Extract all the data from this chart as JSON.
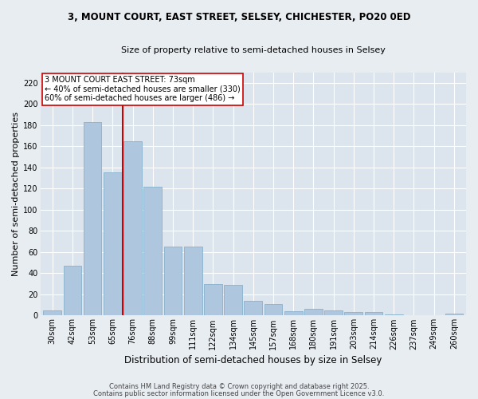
{
  "title": "3, MOUNT COURT, EAST STREET, SELSEY, CHICHESTER, PO20 0ED",
  "subtitle": "Size of property relative to semi-detached houses in Selsey",
  "xlabel": "Distribution of semi-detached houses by size in Selsey",
  "ylabel": "Number of semi-detached properties",
  "categories": [
    "30sqm",
    "42sqm",
    "53sqm",
    "65sqm",
    "76sqm",
    "88sqm",
    "99sqm",
    "111sqm",
    "122sqm",
    "134sqm",
    "145sqm",
    "157sqm",
    "168sqm",
    "180sqm",
    "191sqm",
    "203sqm",
    "214sqm",
    "226sqm",
    "237sqm",
    "249sqm",
    "260sqm"
  ],
  "values": [
    5,
    47,
    183,
    135,
    165,
    122,
    65,
    65,
    30,
    29,
    14,
    11,
    4,
    6,
    5,
    3,
    3,
    1,
    0,
    0,
    2
  ],
  "bar_color": "#aec6de",
  "bar_edgecolor": "#7aaac8",
  "vline_color": "#cc0000",
  "annotation_text": "3 MOUNT COURT EAST STREET: 73sqm\n← 40% of semi-detached houses are smaller (330)\n60% of semi-detached houses are larger (486) →",
  "annotation_box_facecolor": "#ffffff",
  "annotation_box_edgecolor": "#cc0000",
  "ylim": [
    0,
    230
  ],
  "yticks": [
    0,
    20,
    40,
    60,
    80,
    100,
    120,
    140,
    160,
    180,
    200,
    220
  ],
  "footer1": "Contains HM Land Registry data © Crown copyright and database right 2025.",
  "footer2": "Contains public sector information licensed under the Open Government Licence v3.0.",
  "bg_color": "#e8edf2",
  "plot_bg_color": "#dce4ed",
  "title_fontsize": 8.5,
  "subtitle_fontsize": 8,
  "ylabel_fontsize": 8,
  "xlabel_fontsize": 8.5,
  "tick_fontsize": 7,
  "annotation_fontsize": 7,
  "footer_fontsize": 6
}
